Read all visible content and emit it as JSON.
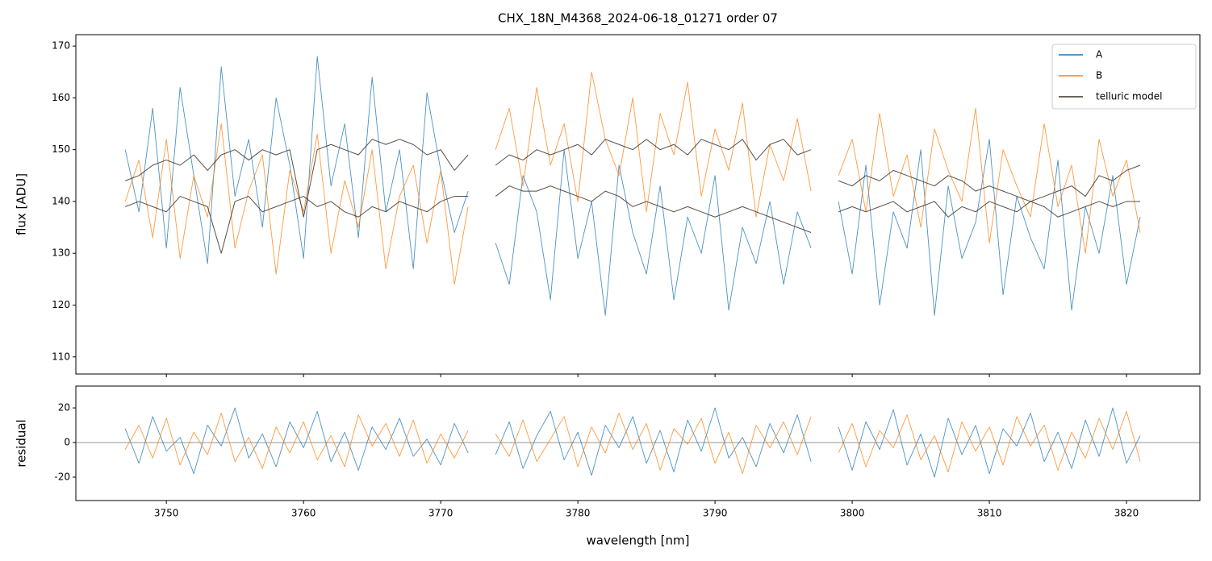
{
  "chart_data": [
    {
      "type": "line",
      "title": "CHX_18N_M4368_2024-06-18_01271  order 07",
      "ylabel": "flux [ADU]",
      "legend": "upper right",
      "xlim": [
        3743.4,
        3825.35
      ],
      "xticks": [
        3750,
        3760,
        3770,
        3780,
        3790,
        3800,
        3810,
        3820
      ],
      "ylim": [
        106.7,
        172.2
      ],
      "yticks": [
        110,
        120,
        130,
        140,
        150,
        160,
        170
      ],
      "x": [
        3747,
        3748,
        3749,
        3750,
        3751,
        3752,
        3753,
        3754,
        3755,
        3756,
        3757,
        3758,
        3759,
        3760,
        3761,
        3762,
        3763,
        3764,
        3765,
        3766,
        3767,
        3768,
        3769,
        3770,
        3771,
        3772,
        3773,
        3774,
        3775,
        3776,
        3777,
        3778,
        3779,
        3780,
        3781,
        3782,
        3783,
        3784,
        3785,
        3786,
        3787,
        3788,
        3789,
        3790,
        3791,
        3792,
        3793,
        3794,
        3795,
        3796,
        3797,
        3798,
        3799,
        3800,
        3801,
        3802,
        3803,
        3804,
        3805,
        3806,
        3807,
        3808,
        3809,
        3810,
        3811,
        3812,
        3813,
        3814,
        3815,
        3816,
        3817,
        3818,
        3819,
        3820,
        3821
      ],
      "series": [
        {
          "name": "A",
          "color": "#1f77b4",
          "values": [
            150,
            138,
            158,
            131,
            162,
            145,
            128,
            166,
            141,
            152,
            135,
            160,
            147,
            129,
            168,
            143,
            155,
            133,
            164,
            138,
            150,
            127,
            161,
            146,
            134,
            142,
            null,
            132,
            124,
            145,
            138,
            121,
            150,
            129,
            140,
            118,
            147,
            134,
            126,
            143,
            121,
            137,
            130,
            145,
            119,
            135,
            128,
            140,
            124,
            138,
            131,
            null,
            140,
            126,
            147,
            120,
            138,
            131,
            150,
            118,
            143,
            129,
            136,
            152,
            122,
            141,
            133,
            127,
            148,
            119,
            139,
            130,
            145,
            124,
            137
          ]
        },
        {
          "name": "B",
          "color": "#ff7f0e",
          "values": [
            140,
            148,
            133,
            152,
            129,
            145,
            137,
            155,
            131,
            142,
            149,
            126,
            146,
            138,
            153,
            130,
            144,
            135,
            150,
            127,
            141,
            147,
            132,
            146,
            124,
            139,
            null,
            150,
            158,
            143,
            162,
            147,
            155,
            140,
            165,
            152,
            145,
            160,
            138,
            157,
            149,
            163,
            141,
            154,
            146,
            159,
            137,
            151,
            144,
            156,
            142,
            null,
            145,
            152,
            138,
            157,
            141,
            149,
            135,
            154,
            146,
            140,
            158,
            132,
            150,
            143,
            137,
            155,
            139,
            147,
            130,
            152,
            141,
            148,
            134
          ]
        },
        {
          "name": "telluric model",
          "color": "#3b3026",
          "values": [
            144,
            145,
            147,
            148,
            147,
            149,
            146,
            149,
            150,
            148,
            150,
            149,
            150,
            137,
            150,
            151,
            150,
            149,
            152,
            151,
            152,
            151,
            149,
            150,
            146,
            149,
            null,
            147,
            149,
            148,
            150,
            149,
            150,
            151,
            149,
            152,
            151,
            150,
            152,
            150,
            151,
            149,
            152,
            151,
            150,
            152,
            148,
            151,
            152,
            149,
            150,
            null,
            144,
            143,
            145,
            144,
            146,
            145,
            144,
            143,
            145,
            144,
            142,
            143,
            142,
            141,
            140,
            141,
            142,
            143,
            141,
            145,
            144,
            146,
            147
          ]
        },
        {
          "color": "#3b3026",
          "values": [
            139,
            140,
            139,
            138,
            141,
            140,
            139,
            130,
            140,
            141,
            138,
            139,
            140,
            141,
            139,
            140,
            138,
            137,
            139,
            138,
            140,
            139,
            138,
            140,
            141,
            141,
            null,
            141,
            143,
            142,
            142,
            143,
            142,
            141,
            140,
            142,
            141,
            139,
            140,
            139,
            138,
            139,
            138,
            137,
            138,
            139,
            138,
            137,
            136,
            135,
            134,
            null,
            138,
            139,
            138,
            139,
            140,
            138,
            139,
            140,
            137,
            139,
            138,
            140,
            139,
            138,
            140,
            139,
            137,
            138,
            139,
            140,
            139,
            140,
            140
          ]
        }
      ]
    },
    {
      "type": "line",
      "ylabel": "residual",
      "xlabel": "wavelength [nm]",
      "hline": 0,
      "xlim": [
        3743.4,
        3825.35
      ],
      "xticks": [
        3750,
        3760,
        3770,
        3780,
        3790,
        3800,
        3810,
        3820
      ],
      "ylim": [
        -33.5,
        32.6
      ],
      "yticks": [
        -20,
        0,
        20
      ],
      "x": [
        3747,
        3748,
        3749,
        3750,
        3751,
        3752,
        3753,
        3754,
        3755,
        3756,
        3757,
        3758,
        3759,
        3760,
        3761,
        3762,
        3763,
        3764,
        3765,
        3766,
        3767,
        3768,
        3769,
        3770,
        3771,
        3772,
        3773,
        3774,
        3775,
        3776,
        3777,
        3778,
        3779,
        3780,
        3781,
        3782,
        3783,
        3784,
        3785,
        3786,
        3787,
        3788,
        3789,
        3790,
        3791,
        3792,
        3793,
        3794,
        3795,
        3796,
        3797,
        3798,
        3799,
        3800,
        3801,
        3802,
        3803,
        3804,
        3805,
        3806,
        3807,
        3808,
        3809,
        3810,
        3811,
        3812,
        3813,
        3814,
        3815,
        3816,
        3817,
        3818,
        3819,
        3820,
        3821
      ],
      "series": [
        {
          "color": "#1f77b4",
          "values": [
            8,
            -12,
            15,
            -5,
            3,
            -18,
            10,
            -2,
            20,
            -9,
            5,
            -14,
            12,
            -3,
            18,
            -11,
            6,
            -16,
            9,
            -4,
            14,
            -8,
            2,
            -13,
            11,
            -6,
            null,
            -7,
            12,
            -15,
            4,
            18,
            -10,
            6,
            -19,
            10,
            -3,
            15,
            -12,
            7,
            -17,
            13,
            -5,
            20,
            -9,
            3,
            -14,
            11,
            -6,
            16,
            -11,
            null,
            9,
            -16,
            12,
            -4,
            19,
            -13,
            5,
            -20,
            14,
            -7,
            10,
            -18,
            8,
            -2,
            17,
            -11,
            6,
            -15,
            13,
            -8,
            20,
            -12,
            4
          ]
        },
        {
          "color": "#ff7f0e",
          "values": [
            -4,
            10,
            -9,
            14,
            -13,
            6,
            -7,
            17,
            -11,
            3,
            -15,
            9,
            -6,
            12,
            -10,
            4,
            -14,
            16,
            -2,
            11,
            -8,
            13,
            -12,
            5,
            -9,
            7,
            null,
            5,
            -8,
            13,
            -11,
            2,
            15,
            -14,
            9,
            -6,
            17,
            -4,
            11,
            -16,
            8,
            -1,
            14,
            -12,
            6,
            -18,
            10,
            -3,
            12,
            -7,
            15,
            null,
            -6,
            11,
            -14,
            7,
            -3,
            16,
            -10,
            4,
            -17,
            12,
            -5,
            9,
            -13,
            15,
            -2,
            10,
            -16,
            6,
            -9,
            14,
            -4,
            18,
            -11
          ]
        }
      ]
    }
  ]
}
